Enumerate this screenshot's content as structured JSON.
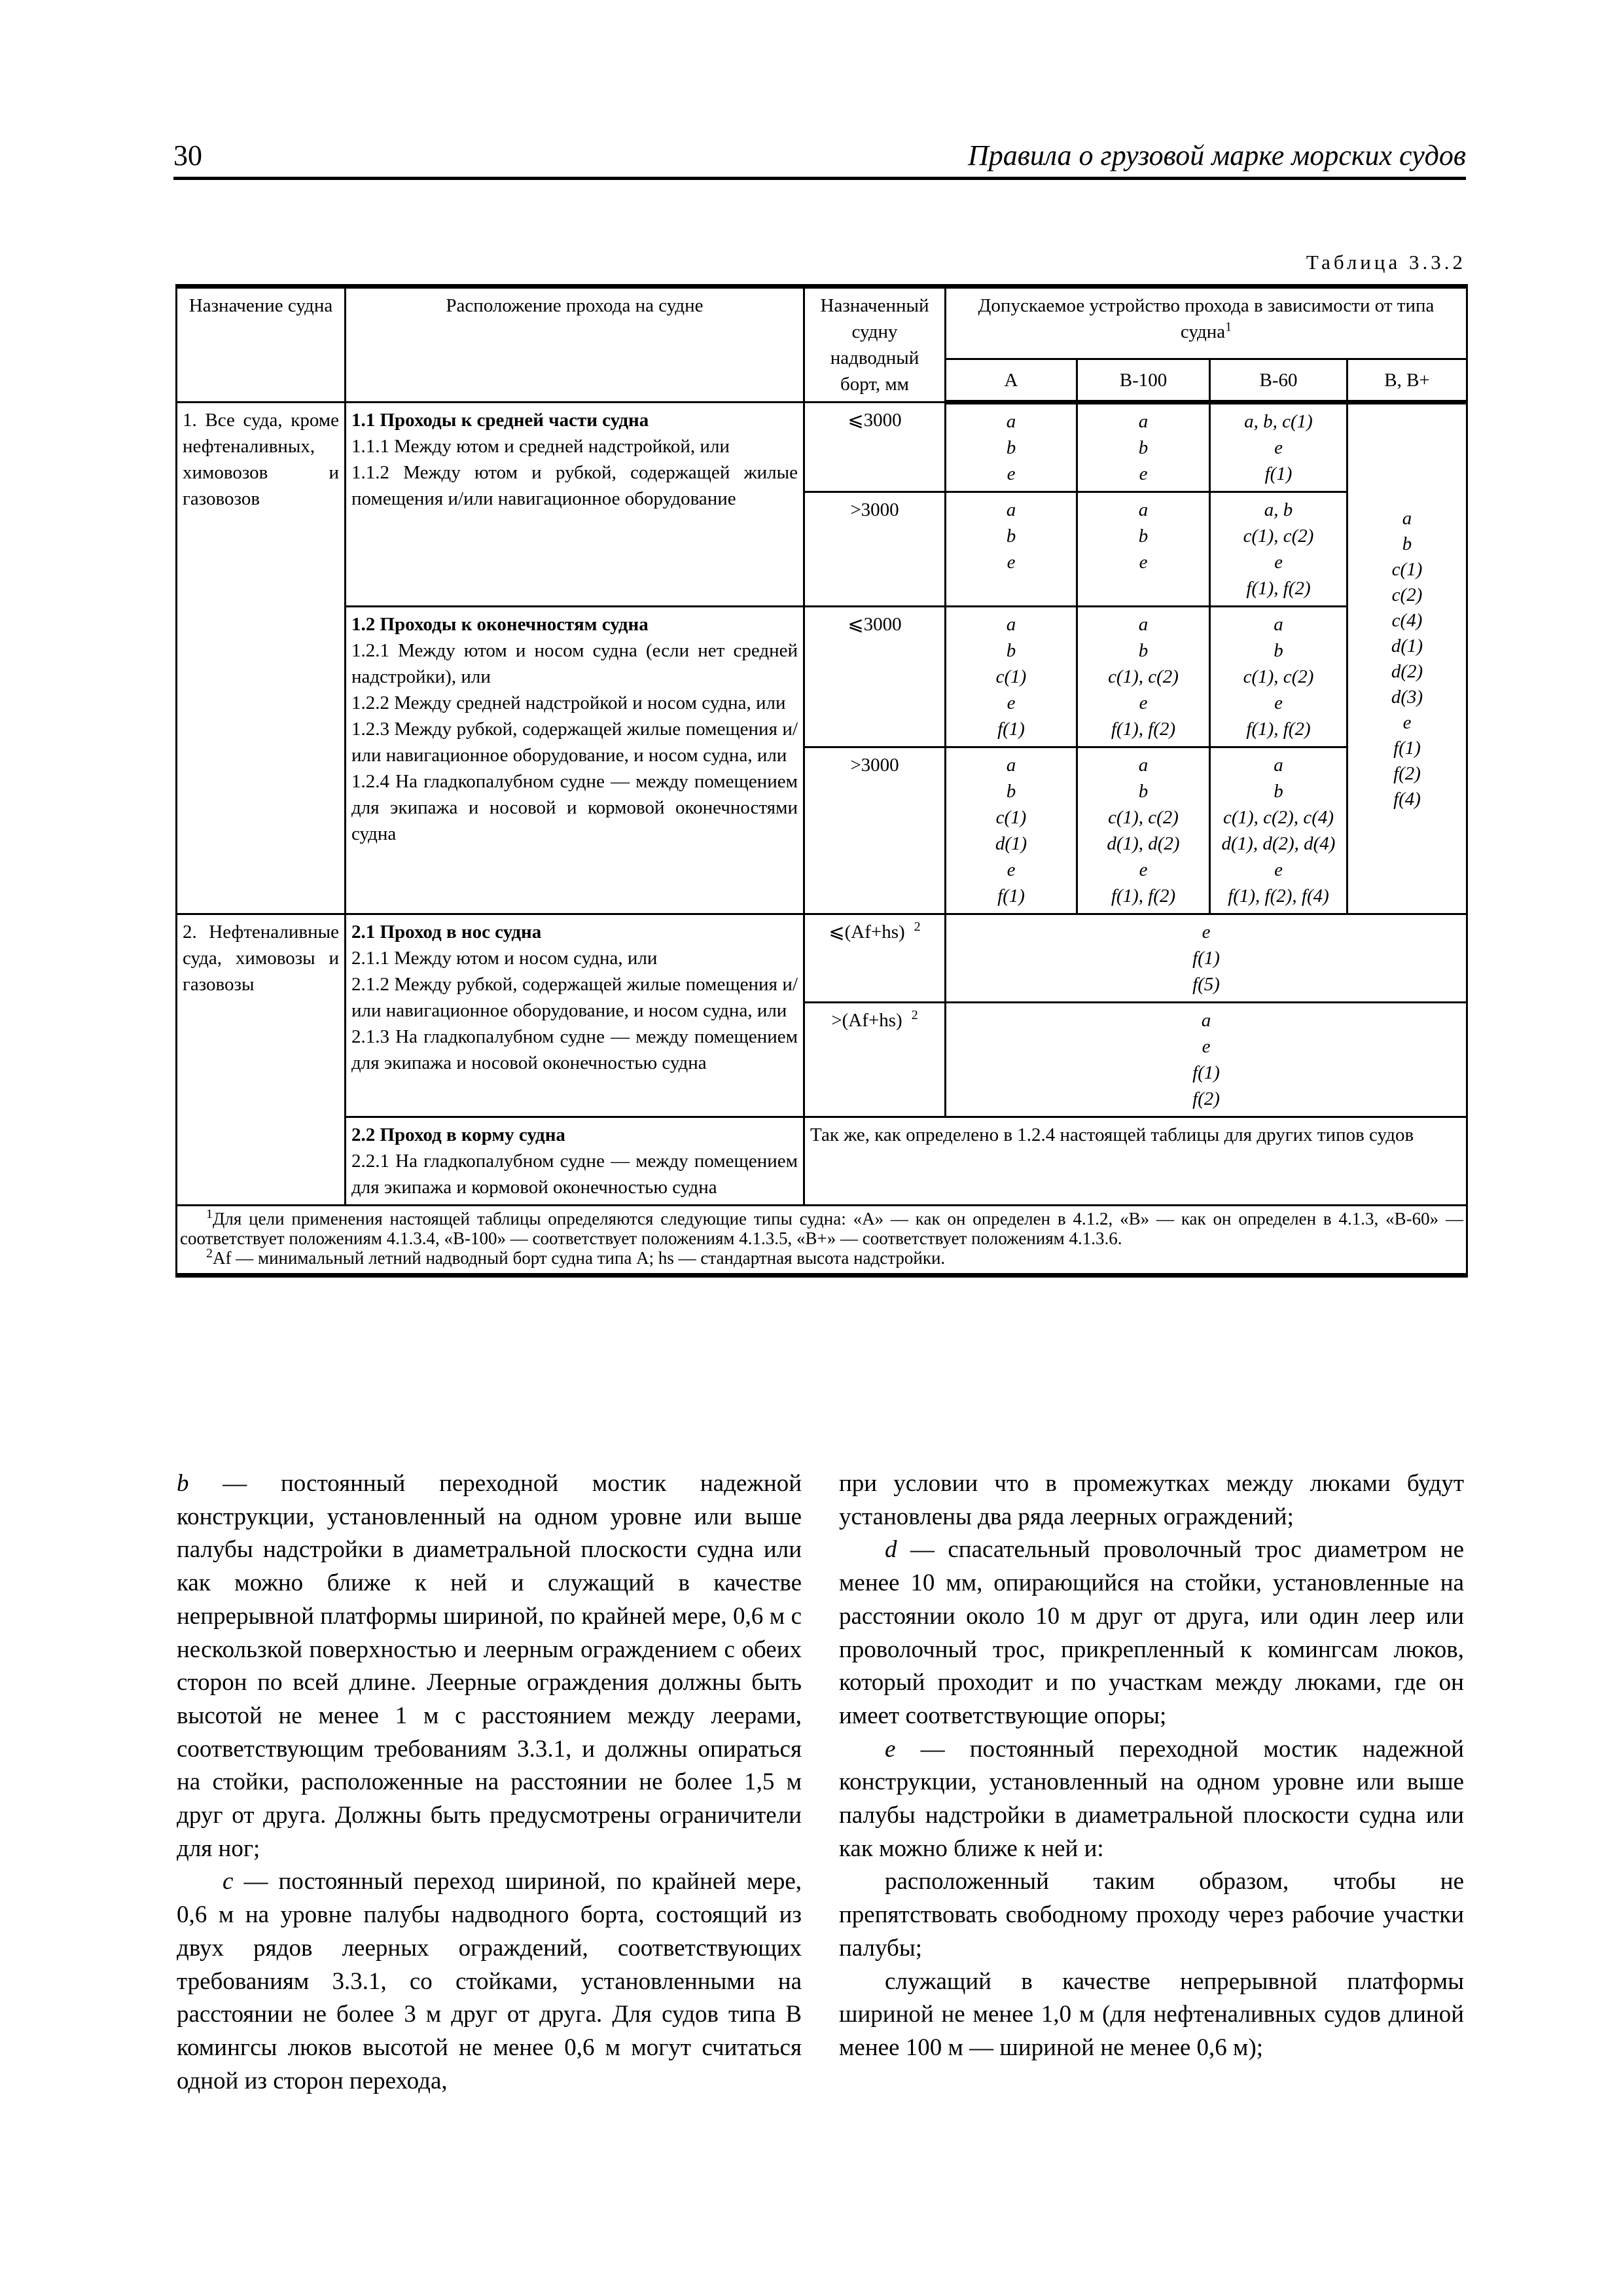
{
  "header": {
    "page_number": "30",
    "title": "Правила о грузовой марке морских судов"
  },
  "table": {
    "caption": "Таблица 3.3.2",
    "headers": {
      "purpose": "Назначение судна",
      "location": "Расположение прохода на судне",
      "freeboard": "Назначенный судну надводный борт, мм",
      "arrangement": "Допускаемое устройство прохода в зависимости от типа судна",
      "arrangement_sup": "1",
      "types": [
        "A",
        "B-100",
        "B-60",
        "B, B+"
      ]
    },
    "groups": [
      {
        "purpose": "1. Все суда, кроме нефтеналивных, химовозов и газовозов",
        "bbplus": [
          "a",
          "b",
          "c(1)",
          "c(2)",
          "c(4)",
          "d(1)",
          "d(2)",
          "d(3)",
          "e",
          "f(1)",
          "f(2)",
          "f(4)"
        ],
        "sections": [
          {
            "title": "1.1 Проходы к средней части судна",
            "lines": [
              "1.1.1 Между ютом и средней надстройкой, или",
              "1.1.2 Между ютом и рубкой, содержащей жилые помещения и/или навигационное оборудование"
            ],
            "rows": [
              {
                "freeboard": "⩽3000",
                "A": [
                  "a",
                  "b",
                  "e"
                ],
                "B100": [
                  "a",
                  "b",
                  "e"
                ],
                "B60": [
                  "a, b, c(1)",
                  "e",
                  "f(1)"
                ]
              },
              {
                "freeboard": ">3000",
                "A": [
                  "a",
                  "b",
                  "e"
                ],
                "B100": [
                  "a",
                  "b",
                  "e"
                ],
                "B60": [
                  "a, b",
                  "c(1), c(2)",
                  "e",
                  "f(1), f(2)"
                ]
              }
            ]
          },
          {
            "title": "1.2 Проходы к оконечностям судна",
            "lines": [
              "1.2.1 Между ютом и носом судна (если нет средней надстройки), или",
              "1.2.2 Между средней надстройкой и носом судна, или",
              "1.2.3 Между рубкой, содержащей жилые помещения и/или навигационное оборудование, и носом судна, или",
              "1.2.4 На гладкопалубном судне — между помещением для экипажа и носовой и кормовой оконечностями судна"
            ],
            "rows": [
              {
                "freeboard": "⩽3000",
                "A": [
                  "a",
                  "b",
                  "c(1)",
                  "e",
                  "f(1)"
                ],
                "B100": [
                  "a",
                  "b",
                  "c(1), c(2)",
                  "e",
                  "f(1), f(2)"
                ],
                "B60": [
                  "a",
                  "b",
                  "c(1), c(2)",
                  "e",
                  "f(1), f(2)"
                ]
              },
              {
                "freeboard": ">3000",
                "A": [
                  "a",
                  "b",
                  "c(1)",
                  "d(1)",
                  "e",
                  "f(1)"
                ],
                "B100": [
                  "a",
                  "b",
                  "c(1), c(2)",
                  "d(1), d(2)",
                  "e",
                  "f(1), f(2)"
                ],
                "B60": [
                  "a",
                  "b",
                  "c(1), c(2), c(4)",
                  "d(1), d(2), d(4)",
                  "e",
                  "f(1), f(2), f(4)"
                ]
              }
            ]
          }
        ]
      },
      {
        "purpose": "2. Нефтеналивные суда, химовозы и газовозы",
        "sections": [
          {
            "title": "2.1 Проход в нос судна",
            "lines": [
              "2.1.1 Между ютом и носом судна, или",
              "2.1.2 Между рубкой, содержащей жилые помещения и/или навигационное оборудование, и носом судна, или",
              "2.1.3 На гладкопалубном судне — между помещением для экипажа и носовой оконечностью судна"
            ],
            "rows": [
              {
                "freeboard": "⩽(Af+hs)",
                "sup": "2",
                "all": [
                  "e",
                  "f(1)",
                  "f(5)"
                ]
              },
              {
                "freeboard": ">(Af+hs)",
                "sup": "2",
                "all": [
                  "a",
                  "e",
                  "f(1)",
                  "f(2)"
                ]
              }
            ]
          },
          {
            "title": "2.2 Проход в корму судна",
            "lines": [
              "2.2.1 На гладкопалубном судне — между помещением для экипажа и кормовой оконечностью судна"
            ],
            "rows": [
              {
                "note": "Так же, как определено в 1.2.4 настоящей таблицы для других типов судов"
              }
            ]
          }
        ]
      }
    ],
    "footnotes": [
      {
        "mark": "1",
        "text": "Для цели применения настоящей таблицы определяются следующие типы судна: «A» — как он определен в 4.1.2, «B» — как он определен в 4.1.3, «B-60» — соответствует положениям 4.1.3.4, «B-100» — соответствует положениям 4.1.3.5, «B+» — соответствует положениям 4.1.3.6."
      },
      {
        "mark": "2",
        "text": "Af — минимальный летний надводный борт судна типа A; hs — стандартная высота надстройки."
      }
    ]
  },
  "body": {
    "left": [
      {
        "letter": "b",
        "text": " — постоянный переходной мостик надежной конструкции, установленный на одном уровне или выше палубы надстройки в диаметральной плоскости судна или как можно ближе к ней и служащий в качестве непрерывной платформы шириной, по крайней мере, 0,6 м с нескользкой поверхностью и леерным ограждением с обеих сторон по всей длине. Леерные ограждения должны быть высотой не менее 1 м с расстоянием между леерами, соответствующим требованиям 3.3.1, и должны опираться на стойки, расположенные на расстоянии не более 1,5 м друг от друга. Должны быть предусмотрены ограничители для ног;",
        "indent": false
      },
      {
        "letter": "c",
        "text": " — постоянный переход шириной, по крайней мере, 0,6 м на уровне палубы надводного борта, состоящий из двух рядов леерных ограждений, соответствующих требованиям 3.3.1, со стойками, установленными на расстоянии не более 3 м друг от друга. Для судов типа B комингсы люков высотой не менее 0,6 м могут считаться одной из сторон перехода,",
        "indent": true
      }
    ],
    "right": [
      {
        "letter": "",
        "text": "при условии что в промежутках между люками будут установлены два ряда леерных ограждений;",
        "indent": false
      },
      {
        "letter": "d",
        "text": " — спасательный проволочный трос диаметром не менее 10 мм, опирающийся на стойки, установленные на расстоянии около 10 м друг от друга, или один леер или проволочный трос, прикрепленный к комингсам люков, который проходит и по участкам между люками, где он имеет соответствующие опоры;",
        "indent": true
      },
      {
        "letter": "e",
        "text": " — постоянный переходной мостик надежной конструкции, установленный на одном уровне или выше палубы надстройки в диаметральной плоскости судна или как можно ближе к ней и:",
        "indent": true
      },
      {
        "letter": "",
        "text": "расположенный таким образом, чтобы не препятствовать свободному проходу через рабочие участки палубы;",
        "indent": true
      },
      {
        "letter": "",
        "text": "служащий в качестве непрерывной платформы шириной не менее 1,0 м (для нефтеналивных судов длиной менее 100 м — шириной не менее 0,6 м);",
        "indent": true
      }
    ]
  }
}
